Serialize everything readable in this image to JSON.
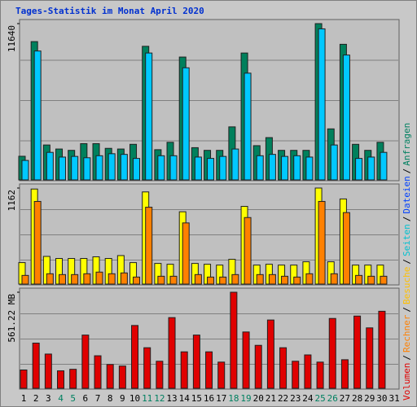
{
  "title": "Tages-Statistik im Monat April 2020",
  "legend": [
    {
      "text": "Volumen",
      "color": "#e00000"
    },
    {
      "text": "Rechner",
      "color": "#ff8000"
    },
    {
      "text": "Besuche",
      "color": "#ffc000"
    },
    {
      "text": "Seiten",
      "color": "#00c0d0"
    },
    {
      "text": "Dateien",
      "color": "#0040ff"
    },
    {
      "text": "Anfragen",
      "color": "#008060"
    }
  ],
  "separator": "/",
  "chart_data": [
    {
      "type": "bar",
      "ylim": [
        0,
        11640
      ],
      "yticks": [
        11640
      ],
      "series": [
        {
          "color": "#00805c",
          "values": [
            1760,
            10300,
            2600,
            2300,
            2200,
            2700,
            2700,
            2350,
            2300,
            2650,
            9950,
            2250,
            2800,
            9150,
            2400,
            2200,
            2200,
            3950,
            9450,
            2550,
            3150,
            2200,
            2200,
            2200,
            11640,
            3800,
            10100,
            2650,
            2200,
            2800,
            null
          ]
        },
        {
          "color": "#00c8ff",
          "values": [
            1450,
            9600,
            2050,
            1700,
            1750,
            1650,
            1800,
            1950,
            1900,
            1600,
            9450,
            1800,
            1800,
            8350,
            1700,
            1600,
            1750,
            2300,
            7950,
            1800,
            1900,
            1750,
            1800,
            1700,
            11250,
            2600,
            9300,
            1600,
            1700,
            2050,
            null
          ]
        }
      ]
    },
    {
      "type": "bar",
      "ylim": [
        0,
        1162
      ],
      "yticks": [
        1162
      ],
      "series": [
        {
          "color": "#ffff00",
          "values": [
            260,
            1150,
            335,
            310,
            310,
            310,
            330,
            310,
            345,
            260,
            1115,
            250,
            240,
            875,
            250,
            240,
            230,
            300,
            940,
            230,
            240,
            230,
            230,
            270,
            1162,
            270,
            1030,
            230,
            230,
            230,
            null
          ]
        },
        {
          "color": "#ff8000",
          "values": [
            105,
            1000,
            125,
            115,
            115,
            125,
            145,
            125,
            135,
            85,
            930,
            95,
            95,
            740,
            115,
            85,
            85,
            115,
            805,
            115,
            115,
            95,
            85,
            125,
            1000,
            125,
            865,
            105,
            95,
            95,
            null
          ]
        }
      ]
    },
    {
      "type": "bar",
      "ylim": [
        0,
        561.22
      ],
      "yticks": [
        {
          "value": 561.22,
          "label": "561.22 MB"
        }
      ],
      "categories": [
        "1",
        "2",
        "3",
        "4",
        "5",
        "6",
        "7",
        "8",
        "9",
        "10",
        "11",
        "12",
        "13",
        "14",
        "15",
        "16",
        "17",
        "18",
        "19",
        "20",
        "21",
        "22",
        "23",
        "24",
        "25",
        "26",
        "27",
        "28",
        "29",
        "30",
        "31"
      ],
      "category_colors": [
        "#000000",
        "#000000",
        "#000000",
        "#008060",
        "#008060",
        "#000000",
        "#000000",
        "#000000",
        "#000000",
        "#000000",
        "#008060",
        "#008060",
        "#000000",
        "#000000",
        "#000000",
        "#000000",
        "#000000",
        "#008060",
        "#008060",
        "#000000",
        "#000000",
        "#000000",
        "#000000",
        "#000000",
        "#008060",
        "#008060",
        "#000000",
        "#000000",
        "#000000",
        "#000000",
        "#000000"
      ],
      "series": [
        {
          "color": "#e00000",
          "values": [
            107,
            264,
            200,
            102,
            111,
            311,
            190,
            139,
            130,
            367,
            237,
            158,
            413,
            213,
            311,
            213,
            153,
            561.22,
            329,
            251,
            399,
            237,
            158,
            195,
            153,
            408,
            167,
            422,
            353,
            450,
            null
          ]
        }
      ]
    }
  ]
}
